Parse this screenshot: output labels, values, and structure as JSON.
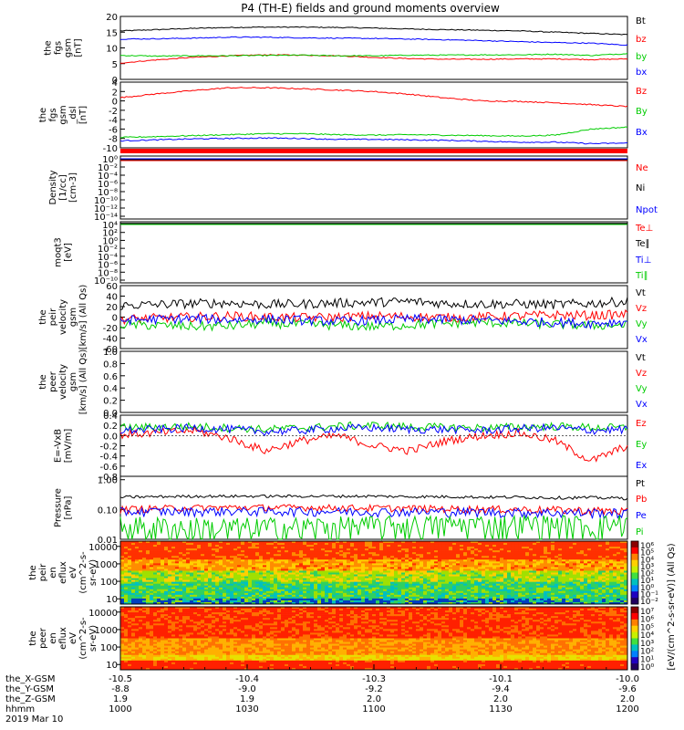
{
  "figure": {
    "title": "P4 (TH-E) fields and ground moments overview"
  },
  "chart_data": [
    {
      "type": "line",
      "panel": "fgs-gsm",
      "ylabel": [
        "the",
        "fgs",
        "gsm",
        "[nT]"
      ],
      "ylim": [
        0,
        20
      ],
      "yticks": [
        0,
        5,
        10,
        15,
        20
      ],
      "series": [
        {
          "name": "Bt",
          "color": "#000000",
          "values": [
            15.4,
            15.8,
            16.2,
            16.5,
            16.6,
            16.6,
            16.5,
            16.3,
            16.0,
            15.8,
            15.6,
            15.4,
            15.0,
            14.6,
            14.2
          ]
        },
        {
          "name": "bz",
          "color": "#ff0000",
          "values": [
            5.2,
            6.2,
            7.0,
            7.5,
            7.8,
            7.7,
            7.5,
            7.0,
            6.6,
            6.4,
            6.4,
            6.5,
            6.5,
            6.3,
            6.5
          ]
        },
        {
          "name": "by",
          "color": "#00cc00",
          "values": [
            7.6,
            7.4,
            7.5,
            7.5,
            7.6,
            7.7,
            7.5,
            7.5,
            7.7,
            7.7,
            7.8,
            7.8,
            8.0,
            7.6,
            8.2
          ]
        },
        {
          "name": "bx",
          "color": "#0000ff",
          "values": [
            12.8,
            12.9,
            13.1,
            13.4,
            13.4,
            13.2,
            13.1,
            13.0,
            12.8,
            12.6,
            12.3,
            12.0,
            11.7,
            11.5,
            10.9
          ]
        }
      ]
    },
    {
      "type": "line",
      "panel": "fgs-gsm-dsl",
      "ylabel": [
        "the",
        "fgs",
        "gsm",
        "_dsl",
        "[nT]"
      ],
      "ylim": [
        -10,
        4
      ],
      "yticks": [
        -10,
        -8,
        -6,
        -4,
        -2,
        0,
        2,
        4
      ],
      "series": [
        {
          "name": "Bz",
          "color": "#ff0000",
          "values": [
            0.7,
            1.5,
            2.2,
            2.8,
            2.8,
            2.6,
            2.3,
            2.0,
            1.4,
            0.6,
            0.0,
            -0.1,
            -0.4,
            -0.8,
            -1.2
          ]
        },
        {
          "name": "By",
          "color": "#00cc00",
          "values": [
            -7.8,
            -7.6,
            -7.4,
            -7.2,
            -7.0,
            -7.0,
            -7.2,
            -7.3,
            -7.2,
            -7.3,
            -7.4,
            -7.5,
            -7.3,
            -6.0,
            -5.6
          ]
        },
        {
          "name": "Bx",
          "color": "#0000ff",
          "values": [
            -8.5,
            -8.3,
            -8.1,
            -8.0,
            -7.9,
            -8.0,
            -8.2,
            -8.2,
            -8.3,
            -8.4,
            -8.6,
            -8.8,
            -8.8,
            -9.1,
            -9.0
          ]
        }
      ]
    },
    {
      "type": "line",
      "panel": "density",
      "ylabel": [
        "Density",
        "[1/cc]",
        "[cm-3]"
      ],
      "ylog": true,
      "ylim": [
        1e-14,
        1
      ],
      "ytick_labels": [
        "10⁰",
        "10⁻²",
        "10⁻⁴",
        "10⁻⁶",
        "10⁻⁸",
        "10⁻¹⁰",
        "10⁻¹²",
        "10⁻¹⁴"
      ],
      "series": [
        {
          "name": "Ne",
          "color": "#ff0000"
        },
        {
          "name": "Ni",
          "color": "#000000"
        },
        {
          "name": "Npot",
          "color": "#0000ff"
        }
      ]
    },
    {
      "type": "line",
      "panel": "temperature",
      "ylabel": [
        "moqt3",
        "[eV]"
      ],
      "ylog": true,
      "ylim": [
        1e-10,
        10000.0
      ],
      "ytick_labels": [
        "10⁴",
        "10²",
        "10⁰",
        "10⁻²",
        "10⁻⁴",
        "10⁻⁶",
        "10⁻⁸",
        "10⁻¹⁰"
      ],
      "series": [
        {
          "name": "Te⊥",
          "color": "#ff0000"
        },
        {
          "name": "Te∥",
          "color": "#000000"
        },
        {
          "name": "Ti⊥",
          "color": "#0000ff"
        },
        {
          "name": "Ti∥",
          "color": "#00cc00"
        }
      ]
    },
    {
      "type": "line",
      "panel": "peir-velocity",
      "ylabel": [
        "the",
        "peir",
        "velocity",
        "gsm",
        "[km/s] (All Qs)"
      ],
      "ylim": [
        -60,
        60
      ],
      "yticks": [
        -60,
        -40,
        -20,
        0,
        20,
        40,
        60
      ],
      "series": [
        {
          "name": "Vt",
          "color": "#000000",
          "values": [
            22,
            24,
            26,
            27,
            24,
            25,
            27,
            28,
            30,
            26,
            25,
            25,
            24,
            26,
            30
          ]
        },
        {
          "name": "Vz",
          "color": "#ff0000",
          "values": [
            -4,
            -2,
            0,
            2,
            0,
            -1,
            0,
            2,
            1,
            -1,
            0,
            2,
            4,
            3,
            5
          ]
        },
        {
          "name": "Vy",
          "color": "#00cc00",
          "values": [
            -14,
            -16,
            -18,
            -17,
            -12,
            -14,
            -16,
            -18,
            -15,
            -12,
            -10,
            -12,
            -14,
            -16,
            -15
          ]
        },
        {
          "name": "Vx",
          "color": "#0000ff",
          "values": [
            -6,
            -4,
            -3,
            -5,
            -4,
            -6,
            -8,
            -6,
            -4,
            -5,
            -6,
            -8,
            -10,
            -12,
            -8
          ]
        }
      ]
    },
    {
      "type": "line",
      "panel": "peer-velocity",
      "ylabel": [
        "the",
        "peer",
        "velocity",
        "gsm",
        "[km/s] (All Qs)"
      ],
      "ylim": [
        0,
        1
      ],
      "yticks": [
        0,
        0.2,
        0.4,
        0.6,
        0.8,
        1.0
      ],
      "ytick_labels": [
        "0.0",
        "0.2",
        "0.4",
        "0.6",
        "0.8",
        "1.0"
      ],
      "series": [
        {
          "name": "Vt",
          "color": "#000000"
        },
        {
          "name": "Vz",
          "color": "#ff0000"
        },
        {
          "name": "Vy",
          "color": "#00cc00"
        },
        {
          "name": "Vx",
          "color": "#0000ff"
        }
      ]
    },
    {
      "type": "line",
      "panel": "e-field",
      "ylabel": [
        "E=-VxB",
        "[mV/m]"
      ],
      "ylim": [
        -0.8,
        0.4
      ],
      "yticks": [
        -0.8,
        -0.6,
        -0.4,
        -0.2,
        0,
        0.2,
        0.4
      ],
      "ytick_labels": [
        "-0.8",
        "-0.6",
        "-0.4",
        "-0.2",
        "0.0",
        "0.2",
        "0.4"
      ],
      "series": [
        {
          "name": "Ez",
          "color": "#ff0000",
          "values": [
            0.02,
            0.05,
            0.1,
            -0.05,
            -0.3,
            -0.1,
            0.0,
            -0.2,
            -0.3,
            -0.1,
            0.0,
            0.05,
            -0.1,
            -0.5,
            -0.2
          ]
        },
        {
          "name": "Ey",
          "color": "#00cc00",
          "values": [
            0.15,
            0.17,
            0.18,
            0.15,
            0.12,
            0.15,
            0.18,
            0.2,
            0.17,
            0.16,
            0.15,
            0.17,
            0.18,
            0.16,
            0.15
          ]
        },
        {
          "name": "Ex",
          "color": "#0000ff",
          "values": [
            0.1,
            0.12,
            0.15,
            0.12,
            0.08,
            0.1,
            0.14,
            0.15,
            0.12,
            0.12,
            0.1,
            0.14,
            0.15,
            0.1,
            0.12
          ]
        }
      ]
    },
    {
      "type": "line",
      "panel": "pressure",
      "ylabel": [
        "Pressure",
        "[nPa]"
      ],
      "ylog": true,
      "ylim": [
        0.01,
        1.3
      ],
      "ytick_labels": [
        "1.00",
        "0.10",
        "0.01"
      ],
      "yticks": [
        1.0,
        0.1,
        0.01
      ],
      "series": [
        {
          "name": "Pt",
          "color": "#000000",
          "values": [
            0.26,
            0.27,
            0.28,
            0.28,
            0.28,
            0.28,
            0.28,
            0.28,
            0.27,
            0.27,
            0.26,
            0.26,
            0.25,
            0.25,
            0.24
          ]
        },
        {
          "name": "Pb",
          "color": "#ff0000",
          "values": [
            0.1,
            0.11,
            0.115,
            0.118,
            0.118,
            0.118,
            0.116,
            0.113,
            0.11,
            0.107,
            0.105,
            0.102,
            0.098,
            0.093,
            0.088
          ]
        },
        {
          "name": "Pe",
          "color": "#0000ff",
          "values": [
            0.085,
            0.087,
            0.088,
            0.089,
            0.088,
            0.088,
            0.087,
            0.086,
            0.085,
            0.084,
            0.083,
            0.082,
            0.08,
            0.078,
            0.077
          ]
        },
        {
          "name": "Pi",
          "color": "#00cc00",
          "values": [
            0.03,
            0.026,
            0.024,
            0.023,
            0.024,
            0.026,
            0.028,
            0.03,
            0.032,
            0.033,
            0.034,
            0.035,
            0.036,
            0.03,
            0.04
          ]
        }
      ]
    },
    {
      "type": "heatmap",
      "panel": "peir-en-eflux",
      "ylabel": [
        "the",
        "peir",
        "en",
        "eflux",
        "eV",
        "(cm^2-s-",
        "sr-eV)"
      ],
      "ylog": true,
      "ylim": [
        5,
        20000
      ],
      "ytick_labels": [
        "10000",
        "1000",
        "100",
        "10"
      ],
      "yticks": [
        10000,
        1000,
        100,
        10
      ]
    },
    {
      "type": "heatmap",
      "panel": "peer-en-eflux",
      "ylabel": [
        "the",
        "peer",
        "en",
        "eflux",
        "eV",
        "(cm^2-s-",
        "sr-eV)"
      ],
      "ylog": true,
      "ylim": [
        5,
        20000
      ],
      "ytick_labels": [
        "10000",
        "1000",
        "100",
        "10"
      ],
      "yticks": [
        10000,
        1000,
        100,
        10
      ]
    }
  ],
  "colorbars": {
    "label": "[eV/(cm^2-s-sr-eV)] (All Qs)",
    "upper_ticks": [
      "10⁶",
      "10⁵",
      "10⁴",
      "10³",
      "10²",
      "10¹",
      "10⁰",
      "10⁻¹",
      "10⁻²"
    ],
    "lower_ticks": [
      "10⁷",
      "10⁶",
      "10⁵",
      "10⁴",
      "10³",
      "10²",
      "10¹",
      "10⁰"
    ]
  },
  "x_axis": {
    "row_labels": [
      "the_X-GSM",
      "the_Y-GSM",
      "the_Z-GSM",
      "hhmm",
      "2019 Mar 10"
    ],
    "ticks": [
      {
        "x": "-10.5",
        "y": "-8.8",
        "z": "1.9",
        "t": "1000"
      },
      {
        "x": "-10.4",
        "y": "-9.0",
        "z": "1.9",
        "t": "1030"
      },
      {
        "x": "-10.3",
        "y": "-9.2",
        "z": "2.0",
        "t": "1100"
      },
      {
        "x": "-10.1",
        "y": "-9.4",
        "z": "2.0",
        "t": "1130"
      },
      {
        "x": "-10.0",
        "y": "-9.6",
        "z": "2.0",
        "t": "1200"
      }
    ]
  }
}
